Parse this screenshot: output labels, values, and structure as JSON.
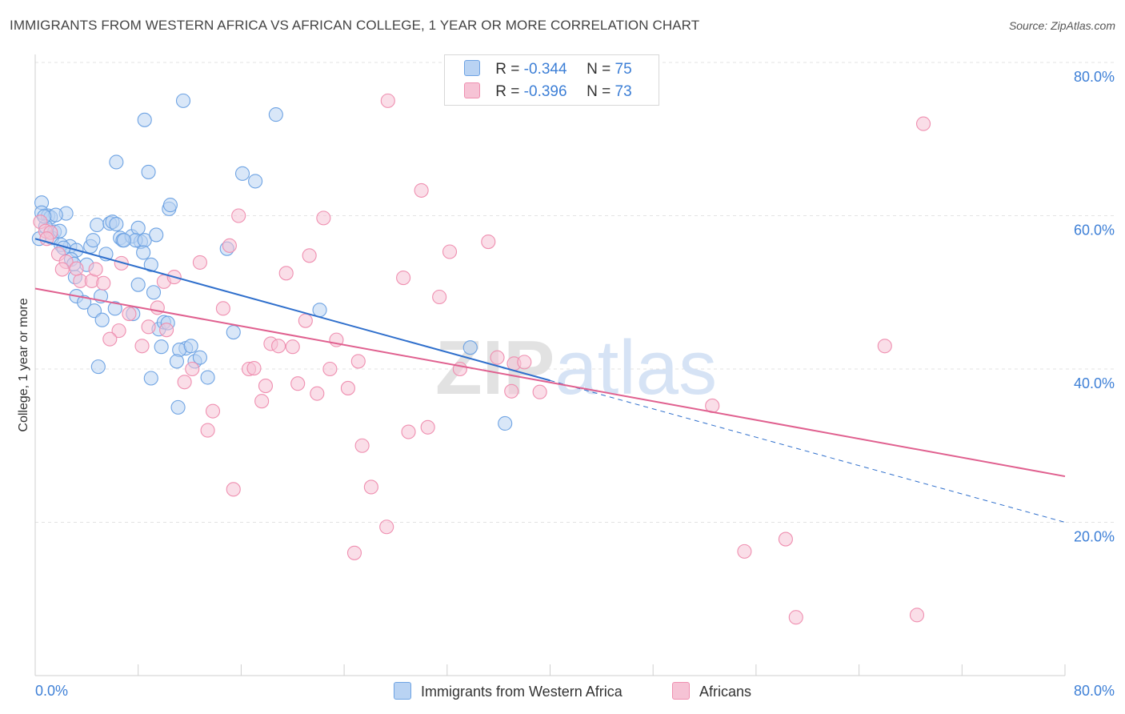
{
  "title": "IMMIGRANTS FROM WESTERN AFRICA VS AFRICAN COLLEGE, 1 YEAR OR MORE CORRELATION CHART",
  "source": "Source: ZipAtlas.com",
  "watermark": "ZIPatlas",
  "legend": {
    "blue": {
      "r_label": "R =",
      "r_value": "-0.344",
      "n_label": "N =",
      "n_value": "75"
    },
    "pink": {
      "r_label": "R =",
      "r_value": "-0.396",
      "n_label": "N =",
      "n_value": "73"
    }
  },
  "colors": {
    "blue": "#6ea3e3",
    "blue_fill": "#b9d3f3",
    "blue_line": "#2f6fcc",
    "pink": "#ef8fb0",
    "pink_fill": "#f6c3d5",
    "pink_line": "#e0608f",
    "tick_label": "#3d7fd6"
  },
  "chart_data": {
    "type": "scatter",
    "title": "IMMIGRANTS FROM WESTERN AFRICA VS AFRICAN COLLEGE, 1 YEAR OR MORE CORRELATION CHART",
    "xlabel": "",
    "ylabel": "College, 1 year or more",
    "xlim": [
      0,
      80
    ],
    "ylim": [
      0,
      80
    ],
    "x_tick_labels": [
      "0.0%",
      "80.0%"
    ],
    "y_tick_labels": [
      "20.0%",
      "40.0%",
      "60.0%",
      "80.0%"
    ],
    "y_ticks": [
      20,
      40,
      60,
      80
    ],
    "grid": true,
    "legend_position": "top-center",
    "series": [
      {
        "name": "Immigrants from Western Africa",
        "color": "#6ea3e3",
        "trend": {
          "x0": 0,
          "y0": 57.0,
          "x1": 40,
          "y1": 38.5,
          "dashed_to_x": 80,
          "dashed_to_y": 20.0
        },
        "points": [
          [
            0.5,
            61.7
          ],
          [
            0.5,
            60.4
          ],
          [
            1,
            60.0
          ],
          [
            1.2,
            59.8
          ],
          [
            0.8,
            58.6
          ],
          [
            1.5,
            57.9
          ],
          [
            1.3,
            57.1
          ],
          [
            2.4,
            60.3
          ],
          [
            2.7,
            56.0
          ],
          [
            2.0,
            56.2
          ],
          [
            3.2,
            55.5
          ],
          [
            4.3,
            56.0
          ],
          [
            2.8,
            54.3
          ],
          [
            4.0,
            53.6
          ],
          [
            3.1,
            52.0
          ],
          [
            4.5,
            56.8
          ],
          [
            4.8,
            58.8
          ],
          [
            5.8,
            59.0
          ],
          [
            6.0,
            59.2
          ],
          [
            6.3,
            58.9
          ],
          [
            5.5,
            55.0
          ],
          [
            6.6,
            57.1
          ],
          [
            6.8,
            56.8
          ],
          [
            7.5,
            57.3
          ],
          [
            8.2,
            56.6
          ],
          [
            8.0,
            58.4
          ],
          [
            7.8,
            56.8
          ],
          [
            8.5,
            56.8
          ],
          [
            9.0,
            53.6
          ],
          [
            8.4,
            55.2
          ],
          [
            8.0,
            51.0
          ],
          [
            9.2,
            50.0
          ],
          [
            5.1,
            49.5
          ],
          [
            3.2,
            49.5
          ],
          [
            3.8,
            48.7
          ],
          [
            4.6,
            47.6
          ],
          [
            6.2,
            47.9
          ],
          [
            5.2,
            46.4
          ],
          [
            7.6,
            47.2
          ],
          [
            9.6,
            45.2
          ],
          [
            10.0,
            46.1
          ],
          [
            10.3,
            46.0
          ],
          [
            9.8,
            42.9
          ],
          [
            11.7,
            42.7
          ],
          [
            11.2,
            42.5
          ],
          [
            12.1,
            43.0
          ],
          [
            12.4,
            41.0
          ],
          [
            12.8,
            41.5
          ],
          [
            11.0,
            41.0
          ],
          [
            9.0,
            38.8
          ],
          [
            13.4,
            38.9
          ],
          [
            4.9,
            40.3
          ],
          [
            11.1,
            35.0
          ],
          [
            15.4,
            44.8
          ],
          [
            22.1,
            47.7
          ],
          [
            33.8,
            42.8
          ],
          [
            36.5,
            32.9
          ],
          [
            14.9,
            55.7
          ],
          [
            10.4,
            60.9
          ],
          [
            10.5,
            61.4
          ],
          [
            16.1,
            65.5
          ],
          [
            17.1,
            64.5
          ],
          [
            8.8,
            65.7
          ],
          [
            6.3,
            67.0
          ],
          [
            8.5,
            72.5
          ],
          [
            11.5,
            75.0
          ],
          [
            18.7,
            73.2
          ],
          [
            0.3,
            57.0
          ],
          [
            1.6,
            60.1
          ],
          [
            2.2,
            55.8
          ],
          [
            0.7,
            59.9
          ],
          [
            3.0,
            53.7
          ],
          [
            6.9,
            56.8
          ],
          [
            9.4,
            57.5
          ],
          [
            1.9,
            58.0
          ]
        ]
      },
      {
        "name": "Africans",
        "color": "#ef8fb0",
        "trend": {
          "x0": 0,
          "y0": 50.5,
          "x1": 80,
          "y1": 26.0
        },
        "points": [
          [
            0.4,
            59.2
          ],
          [
            0.8,
            58.0
          ],
          [
            1.2,
            57.8
          ],
          [
            1.8,
            55.0
          ],
          [
            0.9,
            57.0
          ],
          [
            2.4,
            54.0
          ],
          [
            2.1,
            53.0
          ],
          [
            3.5,
            51.5
          ],
          [
            3.2,
            53.1
          ],
          [
            4.4,
            51.5
          ],
          [
            5.3,
            51.2
          ],
          [
            4.7,
            53.0
          ],
          [
            6.7,
            53.8
          ],
          [
            7.3,
            47.2
          ],
          [
            6.5,
            45.0
          ],
          [
            5.8,
            43.9
          ],
          [
            8.3,
            43.0
          ],
          [
            8.8,
            45.5
          ],
          [
            9.5,
            48.0
          ],
          [
            10.2,
            45.1
          ],
          [
            10.0,
            51.4
          ],
          [
            10.8,
            52.0
          ],
          [
            12.8,
            53.9
          ],
          [
            14.6,
            47.9
          ],
          [
            15.1,
            56.1
          ],
          [
            15.8,
            60.0
          ],
          [
            11.6,
            38.3
          ],
          [
            12.2,
            40.0
          ],
          [
            13.4,
            32.0
          ],
          [
            13.8,
            34.5
          ],
          [
            15.4,
            24.3
          ],
          [
            16.6,
            40.0
          ],
          [
            17.0,
            40.1
          ],
          [
            17.6,
            35.8
          ],
          [
            17.9,
            37.8
          ],
          [
            18.3,
            43.3
          ],
          [
            18.9,
            43.0
          ],
          [
            19.5,
            52.5
          ],
          [
            20.0,
            42.9
          ],
          [
            20.4,
            38.1
          ],
          [
            21.0,
            46.3
          ],
          [
            21.3,
            54.8
          ],
          [
            21.9,
            36.8
          ],
          [
            22.4,
            59.7
          ],
          [
            22.9,
            40.0
          ],
          [
            23.4,
            43.8
          ],
          [
            24.3,
            37.5
          ],
          [
            25.1,
            41.0
          ],
          [
            25.4,
            30.0
          ],
          [
            26.1,
            24.6
          ],
          [
            27.4,
            75.0
          ],
          [
            27.3,
            19.4
          ],
          [
            28.6,
            51.9
          ],
          [
            29.0,
            31.8
          ],
          [
            30.0,
            63.3
          ],
          [
            30.5,
            32.4
          ],
          [
            31.4,
            49.4
          ],
          [
            32.2,
            55.3
          ],
          [
            33.0,
            40.0
          ],
          [
            35.2,
            56.6
          ],
          [
            35.9,
            41.5
          ],
          [
            37.2,
            40.7
          ],
          [
            37.0,
            37.1
          ],
          [
            38.0,
            40.9
          ],
          [
            39.2,
            37.0
          ],
          [
            24.8,
            16.0
          ],
          [
            52.6,
            35.2
          ],
          [
            55.1,
            16.2
          ],
          [
            58.3,
            17.8
          ],
          [
            59.1,
            7.6
          ],
          [
            66.0,
            43.0
          ],
          [
            69.0,
            72.0
          ],
          [
            68.5,
            7.9
          ]
        ]
      }
    ]
  }
}
